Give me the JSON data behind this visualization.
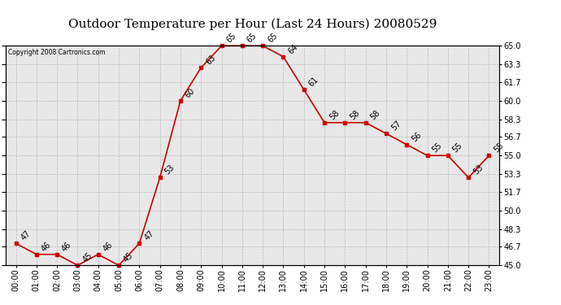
{
  "title": "Outdoor Temperature per Hour (Last 24 Hours) 20080529",
  "copyright": "Copyright 2008 Cartronics.com",
  "hours": [
    "00:00",
    "01:00",
    "02:00",
    "03:00",
    "04:00",
    "05:00",
    "06:00",
    "07:00",
    "08:00",
    "09:00",
    "10:00",
    "11:00",
    "12:00",
    "13:00",
    "14:00",
    "15:00",
    "16:00",
    "17:00",
    "18:00",
    "19:00",
    "20:00",
    "21:00",
    "22:00",
    "23:00"
  ],
  "temps": [
    47,
    46,
    46,
    45,
    46,
    45,
    47,
    53,
    60,
    63,
    65,
    65,
    65,
    64,
    61,
    58,
    58,
    58,
    57,
    56,
    55,
    55,
    53,
    55
  ],
  "ylim": [
    45.0,
    65.0
  ],
  "yticks": [
    45.0,
    46.7,
    48.3,
    50.0,
    51.7,
    53.3,
    55.0,
    56.7,
    58.3,
    60.0,
    61.7,
    63.3,
    65.0
  ],
  "line_color": "#cc0000",
  "marker": "s",
  "marker_size": 3,
  "bg_color": "#e8e8e8",
  "grid_color": "#bbbbbb",
  "title_fontsize": 11,
  "label_fontsize": 7,
  "annot_fontsize": 7
}
